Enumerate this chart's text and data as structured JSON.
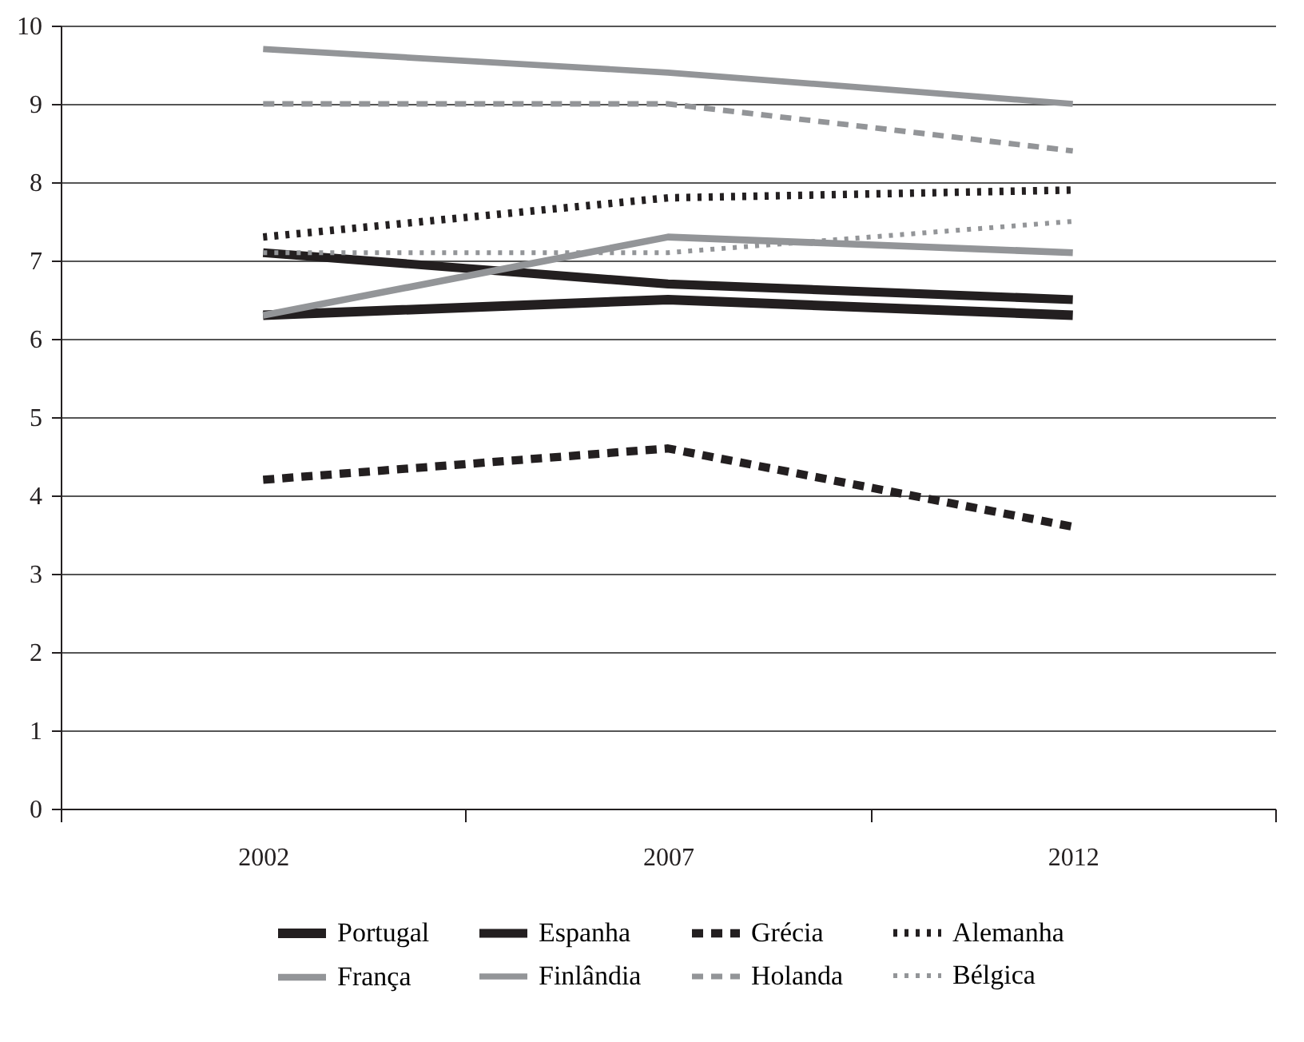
{
  "chart_data": {
    "type": "line",
    "categories": [
      "2002",
      "2007",
      "2012"
    ],
    "ylim": [
      0,
      10
    ],
    "yticks": [
      0,
      1,
      2,
      3,
      4,
      5,
      6,
      7,
      8,
      9,
      10
    ],
    "grid": "y",
    "legend": "bottom",
    "series": [
      {
        "name": "Portugal",
        "color": "#231f20",
        "line_style": "solid",
        "values": [
          6.3,
          6.5,
          6.3
        ]
      },
      {
        "name": "Espanha",
        "color": "#231f20",
        "line_style": "solid",
        "values": [
          7.1,
          6.7,
          6.5
        ]
      },
      {
        "name": "Grécia",
        "color": "#231f20",
        "line_style": "dashed",
        "values": [
          4.2,
          4.6,
          3.6
        ]
      },
      {
        "name": "Alemanha",
        "color": "#231f20",
        "line_style": "dotted",
        "values": [
          7.3,
          7.8,
          7.9
        ]
      },
      {
        "name": "França",
        "color": "#939598",
        "line_style": "solid",
        "values": [
          6.3,
          7.3,
          7.1
        ]
      },
      {
        "name": "Finlândia",
        "color": "#939598",
        "line_style": "solid",
        "values": [
          9.7,
          9.4,
          9.0
        ]
      },
      {
        "name": "Holanda",
        "color": "#939598",
        "line_style": "dashed",
        "values": [
          9.0,
          9.0,
          8.4
        ]
      },
      {
        "name": "Bélgica",
        "color": "#939598",
        "line_style": "dotted",
        "values": [
          7.1,
          7.1,
          7.5
        ]
      }
    ]
  }
}
